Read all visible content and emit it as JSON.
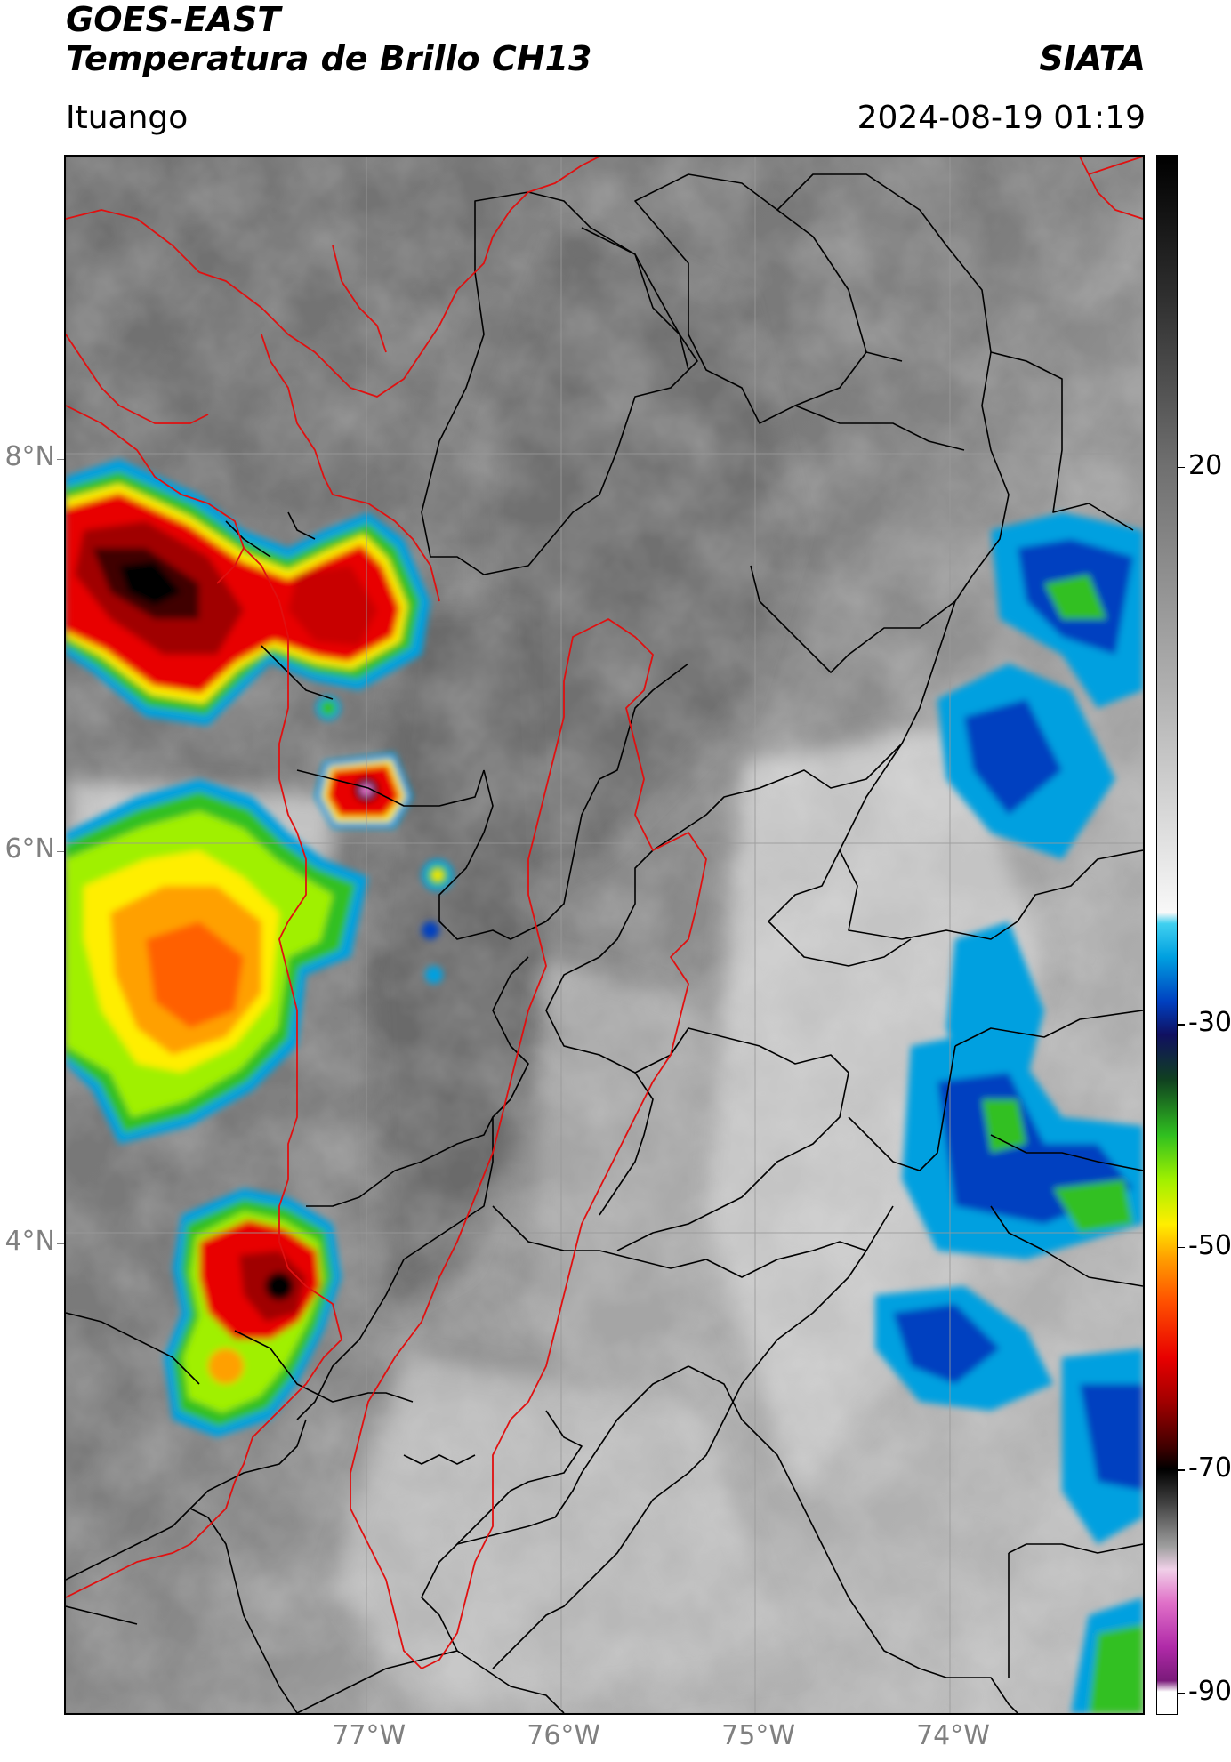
{
  "header": {
    "satellite": "GOES-EAST",
    "product": "Temperatura de Brillo CH13",
    "agency": "SIATA",
    "location": "Ituango",
    "datetime": "2024-08-19 01:19"
  },
  "map": {
    "lat_ticks": [
      {
        "label": "8°N",
        "value": 8
      },
      {
        "label": "6°N",
        "value": 6
      },
      {
        "label": "4°N",
        "value": 4
      }
    ],
    "lon_ticks": [
      {
        "label": "77°W",
        "value": -77
      },
      {
        "label": "76°W",
        "value": -76
      },
      {
        "label": "75°W",
        "value": -75
      },
      {
        "label": "74°W",
        "value": -74
      }
    ],
    "extent": {
      "lon_min": -78.55,
      "lon_max": -73.0,
      "lat_min": 1.6,
      "lat_max": 9.55
    },
    "colors": {
      "graticule": "#999999",
      "boundaries": "#000000",
      "highlight_region": "#e01010",
      "coastline": "#e01010"
    }
  },
  "colorbar": {
    "ticks": [
      {
        "label": "20",
        "value": 20
      },
      {
        "label": "-30",
        "value": -30
      },
      {
        "label": "-50",
        "value": -50
      },
      {
        "label": "-70",
        "value": -70
      },
      {
        "label": "-90",
        "value": -90
      }
    ],
    "range": [
      -92,
      48
    ],
    "stops": [
      {
        "value": -92,
        "color": "#ffffff"
      },
      {
        "value": -90,
        "color": "#ffffff"
      },
      {
        "value": -89,
        "color": "#7a1a7a"
      },
      {
        "value": -86,
        "color": "#b02aa8"
      },
      {
        "value": -82,
        "color": "#e070c8"
      },
      {
        "value": -79,
        "color": "#f0d0e8"
      },
      {
        "value": -77,
        "color": "#a0a0a0"
      },
      {
        "value": -73,
        "color": "#404040"
      },
      {
        "value": -70,
        "color": "#000000"
      },
      {
        "value": -68,
        "color": "#400000"
      },
      {
        "value": -64,
        "color": "#a00000"
      },
      {
        "value": -60,
        "color": "#e80000"
      },
      {
        "value": -55,
        "color": "#ff5000"
      },
      {
        "value": -51,
        "color": "#ffa000"
      },
      {
        "value": -48,
        "color": "#ffee00"
      },
      {
        "value": -44,
        "color": "#a0f000"
      },
      {
        "value": -40,
        "color": "#30c020"
      },
      {
        "value": -35,
        "color": "#104020"
      },
      {
        "value": -31,
        "color": "#101060"
      },
      {
        "value": -28,
        "color": "#0040c0"
      },
      {
        "value": -24,
        "color": "#00a0e0"
      },
      {
        "value": -21,
        "color": "#40d0f0"
      },
      {
        "value": -20,
        "color": "#f8f8f8"
      },
      {
        "value": 0,
        "color": "#b0b0b0"
      },
      {
        "value": 20,
        "color": "#707070"
      },
      {
        "value": 35,
        "color": "#303030"
      },
      {
        "value": 48,
        "color": "#000000"
      }
    ]
  }
}
